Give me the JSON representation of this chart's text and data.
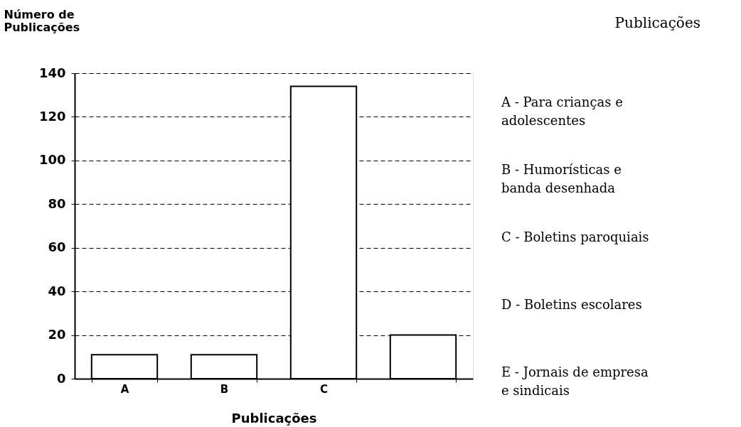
{
  "chart_data": {
    "type": "bar",
    "title": "Publicações",
    "xlabel": "Publicações",
    "ylabel": "Número de\nPublicações",
    "categories": [
      "A",
      "B",
      "C",
      null
    ],
    "values": [
      11,
      11,
      134,
      20
    ],
    "color": "#ffffff",
    "ylim": [
      0,
      140
    ],
    "yticks": [
      0,
      20,
      40,
      60,
      80,
      100,
      120,
      140
    ],
    "grid": "y",
    "annotations": [
      "A - Para crianças e\n     adolescentes",
      "B - Humorísticas e\n     banda desenhada",
      "C - Boletins paroquiais",
      "D - Boletins escolares",
      "E - Jornais de empresa\n     e sindicais"
    ]
  }
}
